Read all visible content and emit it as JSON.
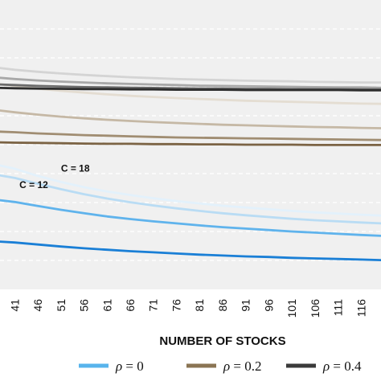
{
  "chart_data": {
    "type": "line",
    "title": "",
    "xlabel": "NUMBER OF STOCKS",
    "ylabel": "",
    "x": [
      41,
      46,
      51,
      56,
      61,
      66,
      71,
      76,
      81,
      86,
      91,
      96,
      101,
      106,
      111,
      116
    ],
    "x_tick_labels": [
      "41",
      "46",
      "51",
      "56",
      "61",
      "66",
      "71",
      "76",
      "81",
      "86",
      "91",
      "96",
      "101",
      "106",
      "111",
      "116"
    ],
    "xlim": [
      37.8,
      120.3
    ],
    "ylim": [
      0,
      1
    ],
    "y_ticks_visible": false,
    "grid": "horizontal dashed",
    "grid_lines": [
      0.1,
      0.2,
      0.3,
      0.4,
      0.5,
      0.6,
      0.7,
      0.8,
      0.9
    ],
    "legend_position": "bottom",
    "colors": {
      "rho_0": "#58b4ec",
      "rho_0_2": "#8a7453",
      "rho_0_4": "#3a3a3a",
      "plot_background": "#f0f0f0",
      "grid": "#ffffff"
    },
    "series": [
      {
        "group": "rho_0",
        "color": "#e3f1fb",
        "width": 2.8,
        "points": [
          [
            37.8,
            0.428
          ],
          [
            41,
            0.417
          ],
          [
            46,
            0.392
          ],
          [
            51,
            0.371
          ],
          [
            56,
            0.353
          ],
          [
            61,
            0.338
          ],
          [
            66,
            0.326
          ],
          [
            71,
            0.315
          ],
          [
            76,
            0.305
          ],
          [
            81,
            0.297
          ],
          [
            86,
            0.289
          ],
          [
            91,
            0.283
          ],
          [
            96,
            0.277
          ],
          [
            101,
            0.271
          ],
          [
            106,
            0.266
          ],
          [
            111,
            0.262
          ],
          [
            116,
            0.258
          ],
          [
            120.3,
            0.255
          ]
        ]
      },
      {
        "group": "rho_0",
        "color": "#b9dcf4",
        "width": 2.8,
        "points": [
          [
            37.8,
            0.394
          ],
          [
            41,
            0.385
          ],
          [
            46,
            0.365
          ],
          [
            51,
            0.346
          ],
          [
            56,
            0.329
          ],
          [
            61,
            0.314
          ],
          [
            66,
            0.301
          ],
          [
            71,
            0.29
          ],
          [
            76,
            0.28
          ],
          [
            81,
            0.271
          ],
          [
            86,
            0.263
          ],
          [
            91,
            0.256
          ],
          [
            96,
            0.25
          ],
          [
            101,
            0.244
          ],
          [
            106,
            0.239
          ],
          [
            111,
            0.235
          ],
          [
            116,
            0.231
          ],
          [
            120.3,
            0.228
          ]
        ]
      },
      {
        "group": "rho_0",
        "color": "#5fb3ec",
        "width": 2.8,
        "points": [
          [
            37.8,
            0.308
          ],
          [
            41,
            0.302
          ],
          [
            46,
            0.288
          ],
          [
            51,
            0.275
          ],
          [
            56,
            0.263
          ],
          [
            61,
            0.252
          ],
          [
            66,
            0.243
          ],
          [
            71,
            0.235
          ],
          [
            76,
            0.228
          ],
          [
            81,
            0.221
          ],
          [
            86,
            0.215
          ],
          [
            91,
            0.21
          ],
          [
            96,
            0.205
          ],
          [
            101,
            0.2
          ],
          [
            106,
            0.196
          ],
          [
            111,
            0.192
          ],
          [
            116,
            0.188
          ],
          [
            120.3,
            0.185
          ]
        ]
      },
      {
        "group": "rho_0",
        "color": "#1a7fd6",
        "width": 2.8,
        "points": [
          [
            37.8,
            0.165
          ],
          [
            41,
            0.162
          ],
          [
            46,
            0.155
          ],
          [
            51,
            0.148
          ],
          [
            56,
            0.142
          ],
          [
            61,
            0.137
          ],
          [
            66,
            0.132
          ],
          [
            71,
            0.128
          ],
          [
            76,
            0.124
          ],
          [
            81,
            0.12
          ],
          [
            86,
            0.117
          ],
          [
            91,
            0.114
          ],
          [
            96,
            0.112
          ],
          [
            101,
            0.109
          ],
          [
            106,
            0.107
          ],
          [
            111,
            0.105
          ],
          [
            116,
            0.103
          ],
          [
            120.3,
            0.101
          ]
        ]
      },
      {
        "group": "rho_0_2",
        "color": "#e4ddd2",
        "width": 2.8,
        "points": [
          [
            37.8,
            0.709
          ],
          [
            41,
            0.703
          ],
          [
            46,
            0.694
          ],
          [
            51,
            0.686
          ],
          [
            56,
            0.68
          ],
          [
            61,
            0.674
          ],
          [
            66,
            0.669
          ],
          [
            71,
            0.665
          ],
          [
            76,
            0.661
          ],
          [
            81,
            0.658
          ],
          [
            86,
            0.655
          ],
          [
            91,
            0.652
          ],
          [
            96,
            0.65
          ],
          [
            101,
            0.648
          ],
          [
            106,
            0.646
          ],
          [
            111,
            0.644
          ],
          [
            116,
            0.642
          ],
          [
            120.3,
            0.641
          ]
        ]
      },
      {
        "group": "rho_0_2",
        "color": "#c5b8a5",
        "width": 2.8,
        "points": [
          [
            37.8,
            0.618
          ],
          [
            41,
            0.612
          ],
          [
            46,
            0.604
          ],
          [
            51,
            0.597
          ],
          [
            56,
            0.591
          ],
          [
            61,
            0.586
          ],
          [
            66,
            0.582
          ],
          [
            71,
            0.578
          ],
          [
            76,
            0.575
          ],
          [
            81,
            0.572
          ],
          [
            86,
            0.569
          ],
          [
            91,
            0.567
          ],
          [
            96,
            0.565
          ],
          [
            101,
            0.563
          ],
          [
            106,
            0.561
          ],
          [
            111,
            0.56
          ],
          [
            116,
            0.558
          ],
          [
            120.3,
            0.557
          ]
        ]
      },
      {
        "group": "rho_0_2",
        "color": "#a08d72",
        "width": 2.8,
        "points": [
          [
            37.8,
            0.545
          ],
          [
            41,
            0.543
          ],
          [
            46,
            0.539
          ],
          [
            51,
            0.536
          ],
          [
            56,
            0.533
          ],
          [
            61,
            0.531
          ],
          [
            66,
            0.529
          ],
          [
            71,
            0.527
          ],
          [
            76,
            0.525
          ],
          [
            81,
            0.524
          ],
          [
            86,
            0.523
          ],
          [
            91,
            0.522
          ],
          [
            96,
            0.521
          ],
          [
            101,
            0.52
          ],
          [
            106,
            0.519
          ],
          [
            111,
            0.518
          ],
          [
            116,
            0.517
          ],
          [
            120.3,
            0.516
          ]
        ]
      },
      {
        "group": "rho_0_2",
        "color": "#7b6344",
        "width": 2.8,
        "points": [
          [
            37.8,
            0.508
          ],
          [
            41,
            0.507
          ],
          [
            46,
            0.506
          ],
          [
            51,
            0.505
          ],
          [
            56,
            0.504
          ],
          [
            61,
            0.503
          ],
          [
            66,
            0.503
          ],
          [
            71,
            0.502
          ],
          [
            76,
            0.502
          ],
          [
            81,
            0.501
          ],
          [
            86,
            0.501
          ],
          [
            91,
            0.5
          ],
          [
            96,
            0.5
          ],
          [
            101,
            0.5
          ],
          [
            106,
            0.499
          ],
          [
            111,
            0.499
          ],
          [
            116,
            0.499
          ],
          [
            120.3,
            0.499
          ]
        ]
      },
      {
        "group": "rho_0_4",
        "color": "#d4d4d4",
        "width": 2.8,
        "points": [
          [
            37.8,
            0.765
          ],
          [
            41,
            0.759
          ],
          [
            46,
            0.752
          ],
          [
            51,
            0.746
          ],
          [
            56,
            0.741
          ],
          [
            61,
            0.737
          ],
          [
            66,
            0.733
          ],
          [
            71,
            0.73
          ],
          [
            76,
            0.727
          ],
          [
            81,
            0.725
          ],
          [
            86,
            0.723
          ],
          [
            91,
            0.721
          ],
          [
            96,
            0.72
          ],
          [
            101,
            0.719
          ],
          [
            106,
            0.717
          ],
          [
            111,
            0.716
          ],
          [
            116,
            0.715
          ],
          [
            120.3,
            0.715
          ]
        ]
      },
      {
        "group": "rho_0_4",
        "color": "#a8a8a8",
        "width": 2.8,
        "points": [
          [
            37.8,
            0.731
          ],
          [
            41,
            0.727
          ],
          [
            46,
            0.722
          ],
          [
            51,
            0.718
          ],
          [
            56,
            0.715
          ],
          [
            61,
            0.712
          ],
          [
            66,
            0.71
          ],
          [
            71,
            0.708
          ],
          [
            76,
            0.706
          ],
          [
            81,
            0.704
          ],
          [
            86,
            0.703
          ],
          [
            91,
            0.702
          ],
          [
            96,
            0.701
          ],
          [
            101,
            0.7
          ],
          [
            106,
            0.699
          ],
          [
            111,
            0.698
          ],
          [
            116,
            0.698
          ],
          [
            120.3,
            0.697
          ]
        ]
      },
      {
        "group": "rho_0_4",
        "color": "#6b6b6b",
        "width": 2.8,
        "points": [
          [
            37.8,
            0.708
          ],
          [
            41,
            0.706
          ],
          [
            46,
            0.703
          ],
          [
            51,
            0.701
          ],
          [
            56,
            0.699
          ],
          [
            61,
            0.698
          ],
          [
            66,
            0.697
          ],
          [
            71,
            0.696
          ],
          [
            76,
            0.695
          ],
          [
            81,
            0.694
          ],
          [
            86,
            0.694
          ],
          [
            91,
            0.693
          ],
          [
            96,
            0.693
          ],
          [
            101,
            0.692
          ],
          [
            106,
            0.692
          ],
          [
            111,
            0.692
          ],
          [
            116,
            0.691
          ],
          [
            120.3,
            0.691
          ]
        ]
      },
      {
        "group": "rho_0_4",
        "color": "#2d2d2d",
        "width": 2.8,
        "points": [
          [
            37.8,
            0.696
          ],
          [
            41,
            0.695
          ],
          [
            46,
            0.694
          ],
          [
            51,
            0.693
          ],
          [
            56,
            0.692
          ],
          [
            61,
            0.692
          ],
          [
            66,
            0.691
          ],
          [
            71,
            0.691
          ],
          [
            76,
            0.69
          ],
          [
            81,
            0.69
          ],
          [
            86,
            0.69
          ],
          [
            91,
            0.689
          ],
          [
            96,
            0.689
          ],
          [
            101,
            0.689
          ],
          [
            106,
            0.689
          ],
          [
            111,
            0.689
          ],
          [
            116,
            0.688
          ],
          [
            120.3,
            0.688
          ]
        ]
      }
    ],
    "annotations": [
      {
        "text": "C = 18",
        "x": 51,
        "y": 0.407
      },
      {
        "text": "C = 12",
        "x": 42,
        "y": 0.35
      }
    ],
    "legend": [
      {
        "symbol": "ρ",
        "label": " = 0",
        "color": "#58b4ec"
      },
      {
        "symbol": "ρ",
        "label": " = 0.2",
        "color": "#8a7453"
      },
      {
        "symbol": "ρ",
        "label": " = 0.4",
        "color": "#3a3a3a"
      }
    ]
  }
}
